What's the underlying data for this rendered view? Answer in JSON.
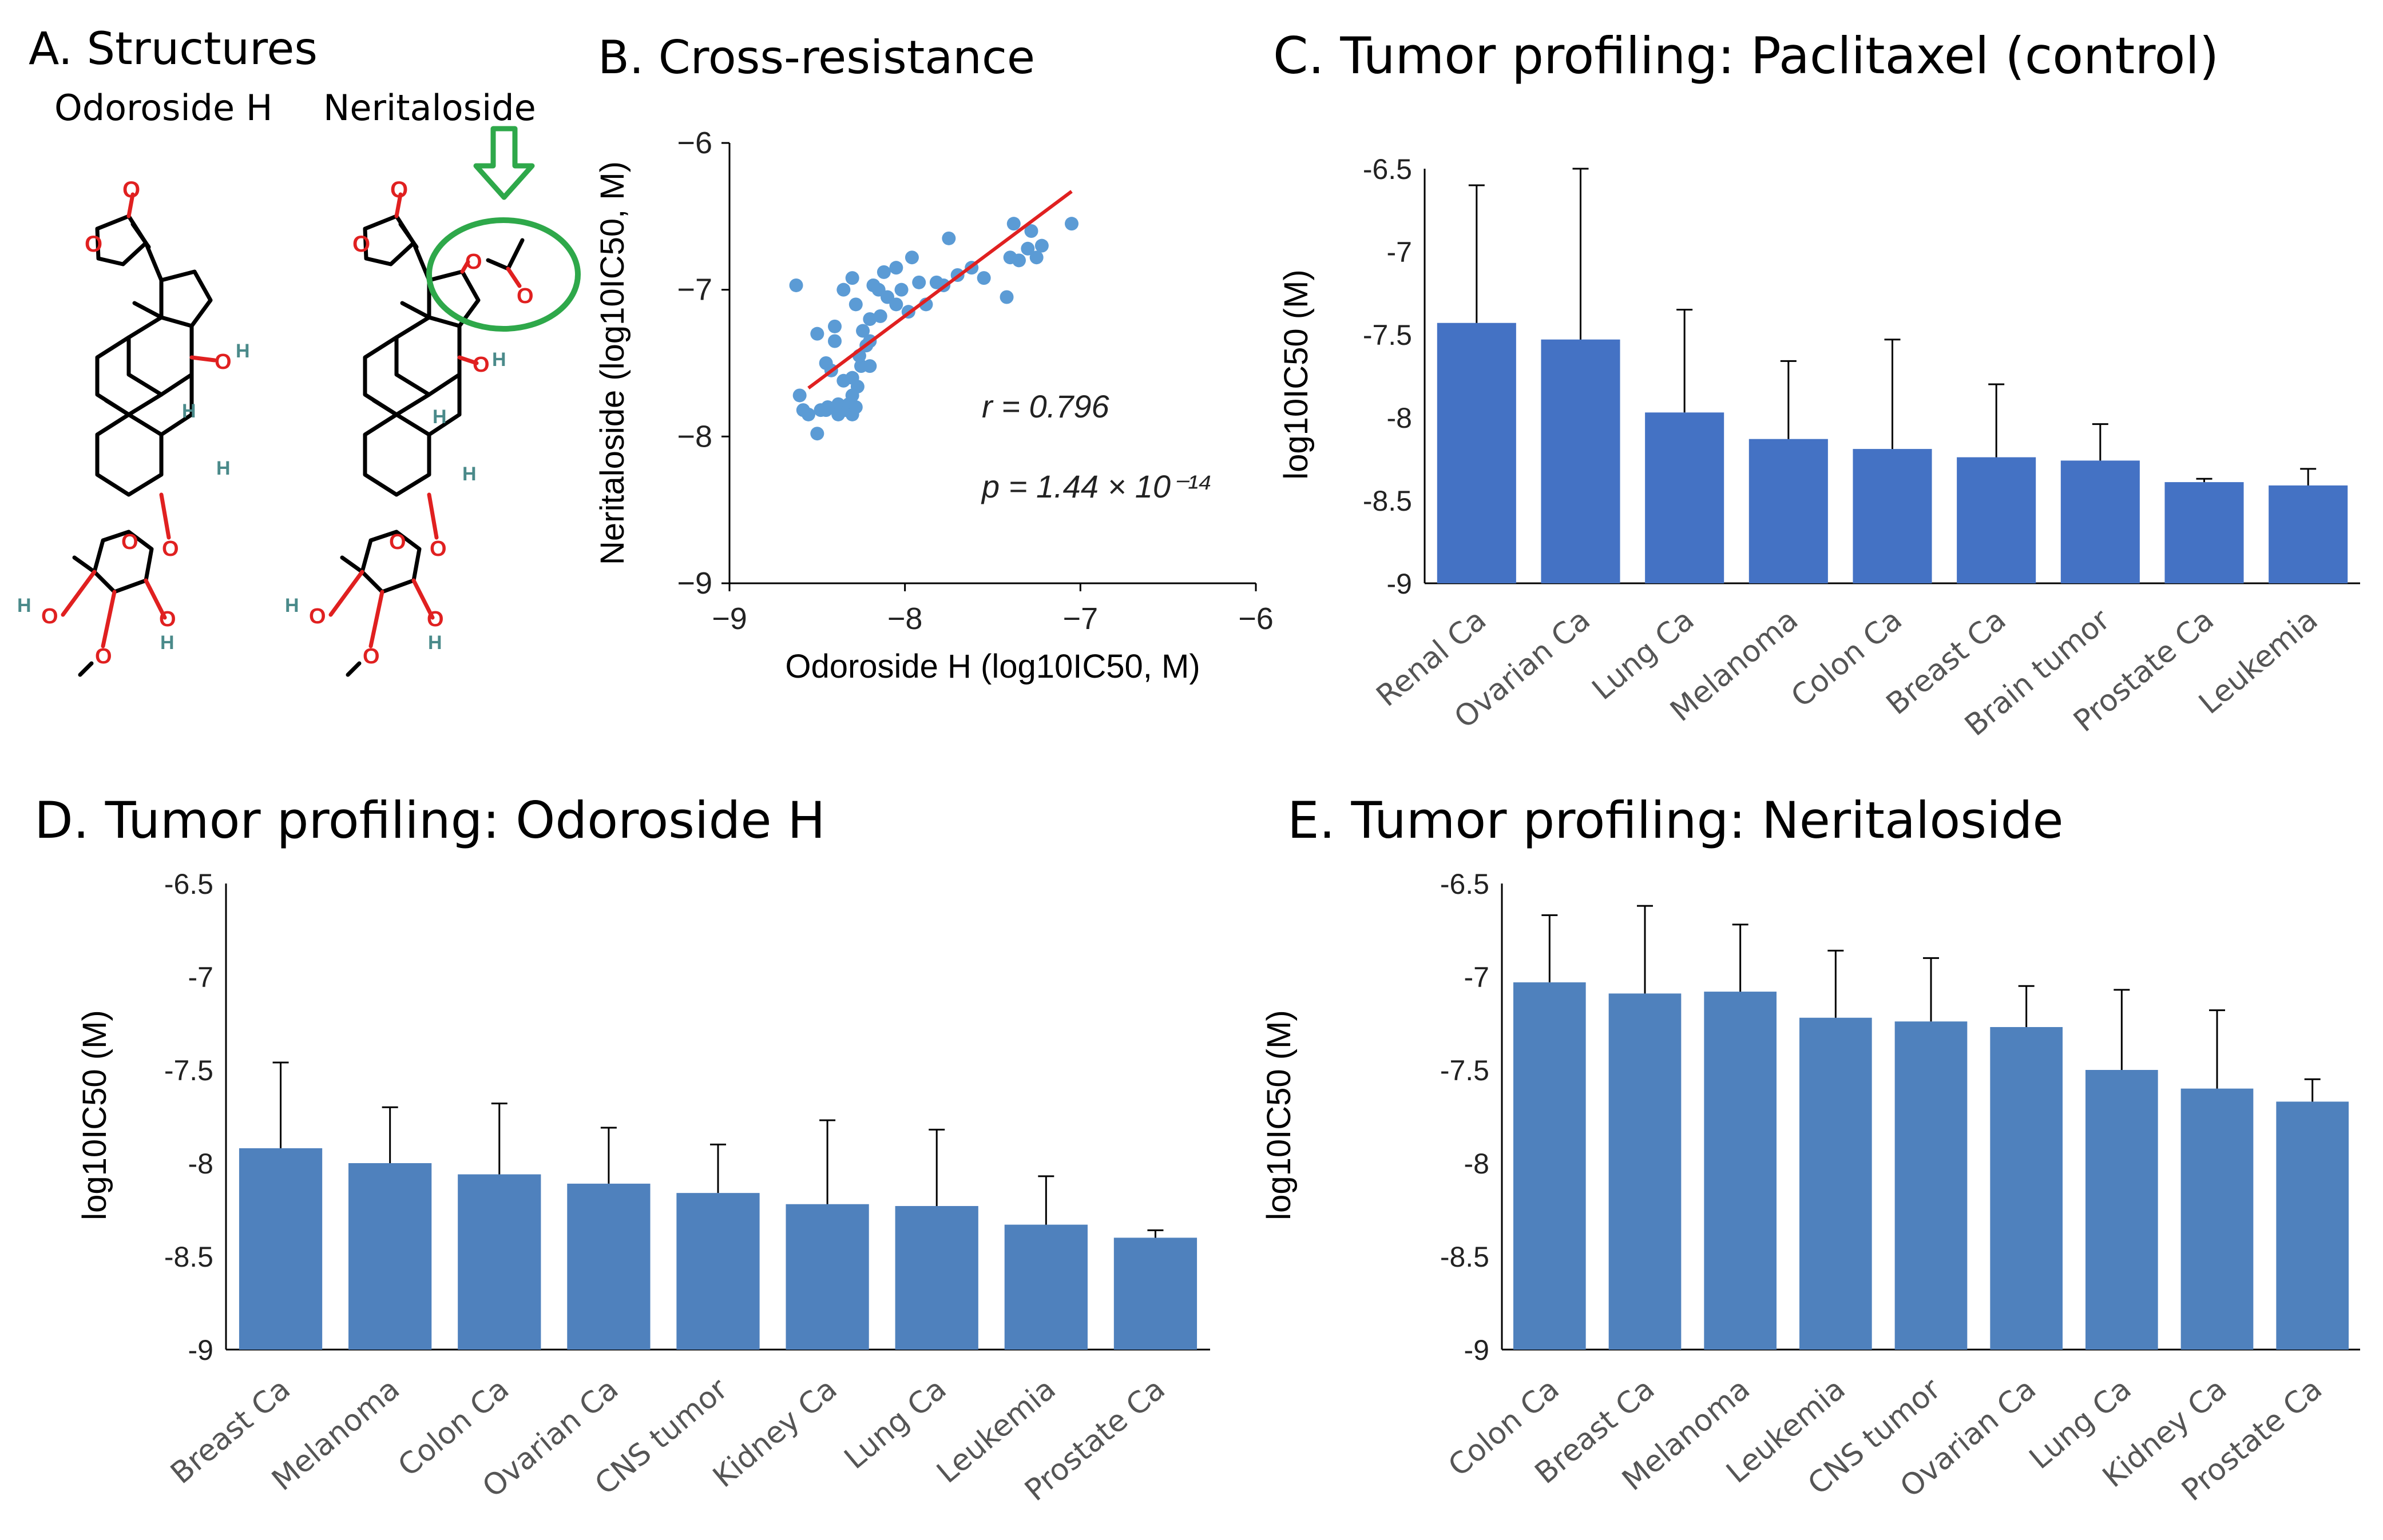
{
  "panels": {
    "a": {
      "title": "A.  Structures",
      "mol1": "Odoroside H",
      "mol2": "Neritaloside",
      "atoms": {
        "O": "O",
        "H": "H"
      }
    }
  },
  "colors": {
    "bar_c": "#4472c4",
    "bar_de": "#4f81bd",
    "scatter_point": "#5b9bd5",
    "regression_line": "#e02020",
    "highlight_circle": "#2ea84a",
    "highlight_arrow": "#2ea84a",
    "oxygen": "#e02020",
    "hydrogen": "#4a8a8a"
  },
  "chart_data": [
    {
      "id": "b",
      "type": "scatter",
      "title": "B. Cross-resistance",
      "xlabel": "Odoroside H (log10IC50, M)",
      "ylabel": "Neritaloside (log10IC50, M)",
      "xlim": [
        -9,
        -6
      ],
      "ylim": [
        -9,
        -6
      ],
      "xticks": [
        -9,
        -8,
        -7,
        -6
      ],
      "yticks": [
        -6,
        -7,
        -8,
        -9
      ],
      "tick_labels_x": [
        "−9",
        "−8",
        "−7",
        "−6"
      ],
      "tick_labels_y": [
        "−6",
        "−7",
        "−8",
        "−9"
      ],
      "annotation_r": "r = 0.796",
      "annotation_p": "p = 1.44 × 10⁻¹⁴",
      "regression": {
        "x1": -8.55,
        "y1": -7.67,
        "x2": -7.05,
        "y2": -6.33
      },
      "points": [
        [
          -8.62,
          -6.97
        ],
        [
          -8.55,
          -7.85
        ],
        [
          -8.6,
          -7.72
        ],
        [
          -8.5,
          -7.98
        ],
        [
          -8.45,
          -7.5
        ],
        [
          -8.5,
          -7.3
        ],
        [
          -8.42,
          -7.55
        ],
        [
          -8.4,
          -7.25
        ],
        [
          -8.48,
          -7.82
        ],
        [
          -8.44,
          -7.8
        ],
        [
          -8.38,
          -7.78
        ],
        [
          -8.35,
          -7.62
        ],
        [
          -8.34,
          -7.82
        ],
        [
          -8.32,
          -7.78
        ],
        [
          -8.3,
          -7.85
        ],
        [
          -8.3,
          -7.6
        ],
        [
          -8.28,
          -7.8
        ],
        [
          -8.27,
          -7.66
        ],
        [
          -8.25,
          -7.52
        ],
        [
          -8.26,
          -7.45
        ],
        [
          -8.22,
          -7.38
        ],
        [
          -8.2,
          -7.35
        ],
        [
          -8.2,
          -7.2
        ],
        [
          -8.24,
          -7.28
        ],
        [
          -8.35,
          -7.0
        ],
        [
          -8.3,
          -6.92
        ],
        [
          -8.28,
          -7.1
        ],
        [
          -8.18,
          -6.97
        ],
        [
          -8.15,
          -7.0
        ],
        [
          -8.14,
          -7.18
        ],
        [
          -8.12,
          -6.88
        ],
        [
          -8.1,
          -7.05
        ],
        [
          -8.05,
          -6.85
        ],
        [
          -8.05,
          -7.1
        ],
        [
          -8.02,
          -7.0
        ],
        [
          -7.98,
          -7.15
        ],
        [
          -7.96,
          -6.78
        ],
        [
          -7.92,
          -6.95
        ],
        [
          -7.88,
          -7.1
        ],
        [
          -7.82,
          -6.95
        ],
        [
          -7.78,
          -6.97
        ],
        [
          -7.75,
          -6.65
        ],
        [
          -7.7,
          -6.9
        ],
        [
          -7.62,
          -6.85
        ],
        [
          -7.55,
          -6.92
        ],
        [
          -7.42,
          -7.05
        ],
        [
          -7.4,
          -6.78
        ],
        [
          -7.38,
          -6.55
        ],
        [
          -7.35,
          -6.8
        ],
        [
          -7.3,
          -6.72
        ],
        [
          -7.28,
          -6.6
        ],
        [
          -7.25,
          -6.78
        ],
        [
          -7.22,
          -6.7
        ],
        [
          -7.05,
          -6.55
        ],
        [
          -8.4,
          -7.35
        ],
        [
          -8.45,
          -7.82
        ],
        [
          -8.38,
          -7.85
        ],
        [
          -8.3,
          -7.72
        ],
        [
          -8.58,
          -7.82
        ],
        [
          -8.2,
          -7.52
        ]
      ]
    },
    {
      "id": "c",
      "type": "bar",
      "title": "C. Tumor profiling: Paclitaxel (control)",
      "ylabel": "log10IC50 (M)",
      "ylim": [
        -9,
        -6.5
      ],
      "yticks": [
        -6.5,
        -7,
        -7.5,
        -8,
        -8.5,
        -9
      ],
      "categories": [
        "Renal Ca",
        "Ovarian Ca",
        "Lung Ca",
        "Melanoma",
        "Colon Ca",
        "Breast Ca",
        "Brain tumor",
        "Prostate Ca",
        "Leukemia"
      ],
      "values": [
        -7.43,
        -7.53,
        -7.97,
        -8.13,
        -8.19,
        -8.24,
        -8.26,
        -8.39,
        -8.41
      ],
      "errors": [
        0.83,
        1.03,
        0.62,
        0.47,
        0.66,
        0.44,
        0.22,
        0.02,
        0.1
      ]
    },
    {
      "id": "d",
      "type": "bar",
      "title": "D. Tumor profiling: Odoroside H",
      "ylabel": "log10IC50 (M)",
      "ylim": [
        -9,
        -6.5
      ],
      "yticks": [
        -6.5,
        -7,
        -7.5,
        -8,
        -8.5,
        -9
      ],
      "categories": [
        "Breast Ca",
        "Melanoma",
        "Colon Ca",
        "Ovarian Ca",
        "CNS tumor",
        "Kidney Ca",
        "Lung Ca",
        "Leukemia",
        "Prostate Ca"
      ],
      "values": [
        -7.92,
        -8.0,
        -8.06,
        -8.11,
        -8.16,
        -8.22,
        -8.23,
        -8.33,
        -8.4
      ],
      "errors": [
        0.46,
        0.3,
        0.38,
        0.3,
        0.26,
        0.45,
        0.41,
        0.26,
        0.04
      ]
    },
    {
      "id": "e",
      "type": "bar",
      "title": "E. Tumor profiling: Neritaloside",
      "ylabel": "log10IC50 (M)",
      "ylim": [
        -9,
        -6.5
      ],
      "yticks": [
        -6.5,
        -7,
        -7.5,
        -8,
        -8.5,
        -9
      ],
      "categories": [
        "Colon Ca",
        "Breast Ca",
        "Melanoma",
        "Leukemia",
        "CNS tumor",
        "Ovarian Ca",
        "Lung Ca",
        "Kidney Ca",
        "Prostate Ca"
      ],
      "values": [
        -7.03,
        -7.09,
        -7.08,
        -7.22,
        -7.24,
        -7.27,
        -7.5,
        -7.6,
        -7.67
      ],
      "errors": [
        0.36,
        0.47,
        0.36,
        0.36,
        0.34,
        0.22,
        0.43,
        0.42,
        0.12
      ]
    }
  ]
}
